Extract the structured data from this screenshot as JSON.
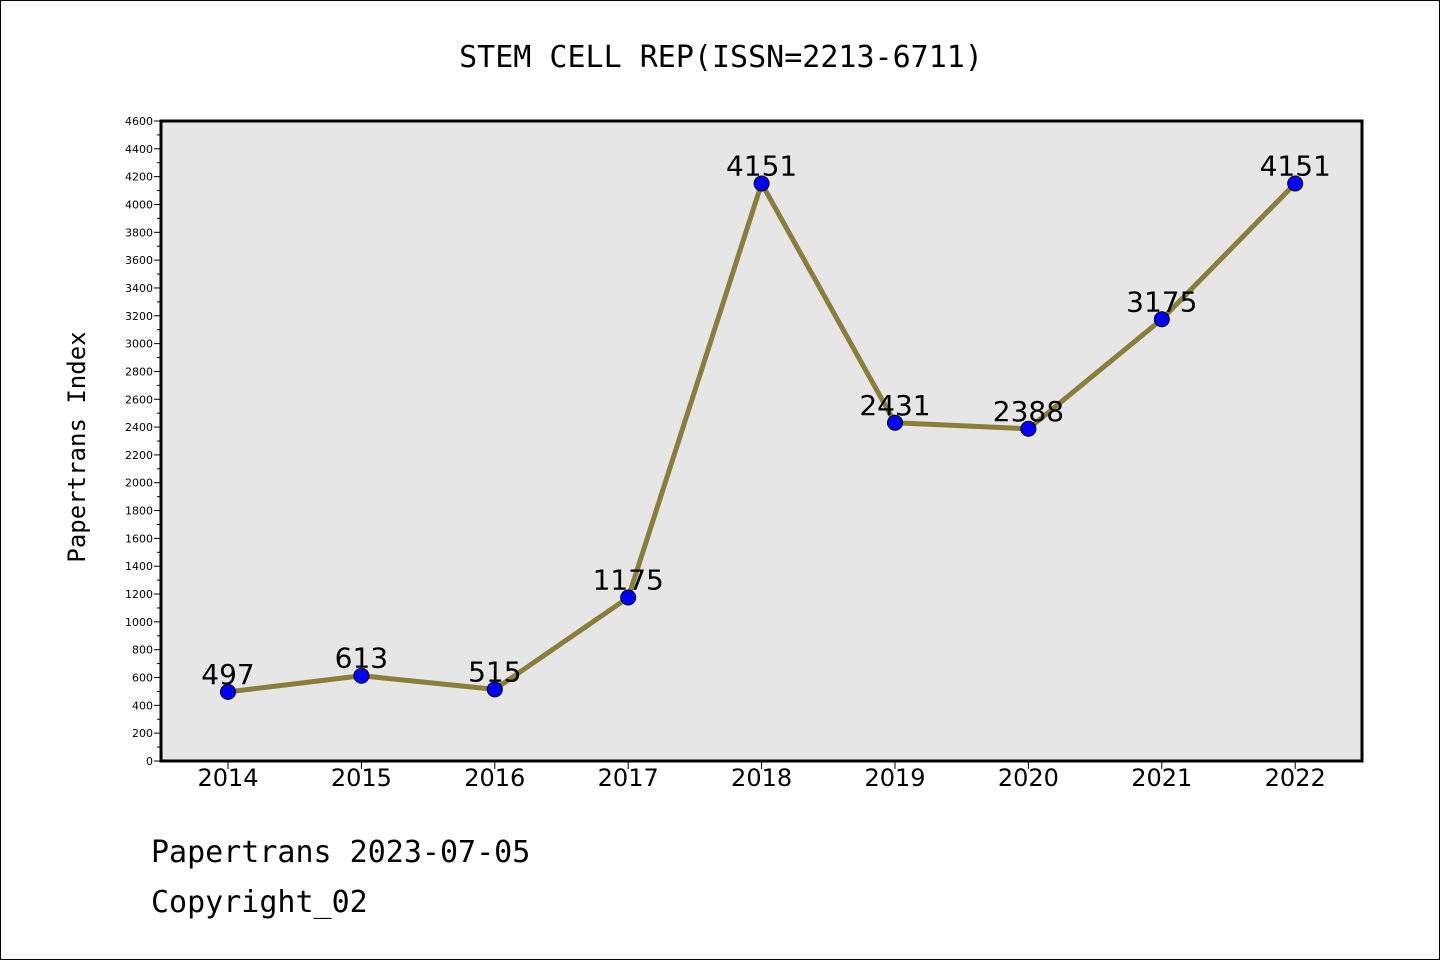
{
  "chart_data": {
    "type": "line",
    "title": "STEM CELL REP(ISSN=2213-6711)",
    "xlabel": "",
    "ylabel": "Papertrans Index",
    "categories": [
      "2014",
      "2015",
      "2016",
      "2017",
      "2018",
      "2019",
      "2020",
      "2021",
      "2022"
    ],
    "values": [
      497,
      613,
      515,
      1175,
      4151,
      2431,
      2388,
      3175,
      4151
    ],
    "ylim": [
      0,
      4600
    ],
    "ytick_step": 200,
    "grid": false,
    "colors": {
      "line": "#8b7d3a",
      "marker": "#0000ff",
      "plot_background": "#e6e6e6"
    }
  },
  "footer": {
    "line1": "Papertrans 2023-07-05",
    "line2": "Copyright_02"
  }
}
